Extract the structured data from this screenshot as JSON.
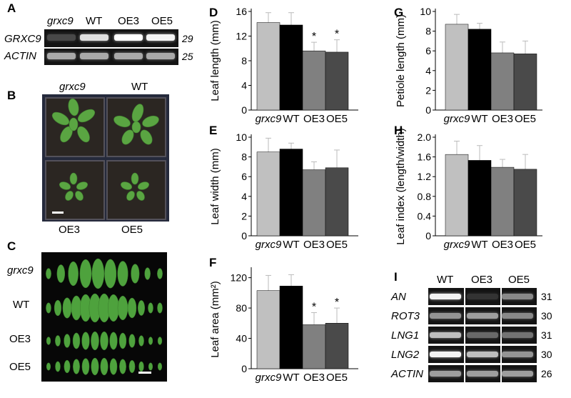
{
  "panel_letters": {
    "A": "A",
    "B": "B",
    "C": "C",
    "D": "D",
    "E": "E",
    "F": "F",
    "G": "G",
    "H": "H",
    "I": "I"
  },
  "panel_a": {
    "lanes": [
      "grxc9",
      "WT",
      "OE3",
      "OE5"
    ],
    "rows": [
      {
        "label": "GRXC9",
        "cycles": "29"
      },
      {
        "label": "ACTIN",
        "cycles": "25"
      }
    ],
    "band_intensity": {
      "GRXC9": [
        0.15,
        0.85,
        1.0,
        0.95
      ],
      "ACTIN": [
        0.6,
        0.6,
        0.6,
        0.6
      ]
    }
  },
  "panel_b": {
    "labels_top": [
      "grxc9",
      "WT"
    ],
    "labels_bottom": [
      "OE3",
      "OE5"
    ]
  },
  "panel_c": {
    "rows": [
      "grxc9",
      "WT",
      "OE3",
      "OE5"
    ]
  },
  "panel_i": {
    "lanes": [
      "WT",
      "OE3",
      "OE5"
    ],
    "rows": [
      {
        "label": "AN",
        "cycles": "31"
      },
      {
        "label": "ROT3",
        "cycles": "30"
      },
      {
        "label": "LNG1",
        "cycles": "31"
      },
      {
        "label": "LNG2",
        "cycles": "30"
      },
      {
        "label": "ACTIN",
        "cycles": "26"
      }
    ],
    "band_intensity": {
      "AN": [
        0.95,
        0.05,
        0.45
      ],
      "ROT3": [
        0.5,
        0.55,
        0.45
      ],
      "LNG1": [
        0.7,
        0.3,
        0.35
      ],
      "LNG2": [
        0.95,
        0.7,
        0.5
      ],
      "ACTIN": [
        0.55,
        0.55,
        0.55
      ]
    }
  },
  "colors": {
    "grxc9": "#c0c0c0",
    "WT": "#000000",
    "OE3": "#808080",
    "OE5": "#4a4a4a"
  },
  "chart_data": [
    {
      "panel": "D",
      "type": "bar",
      "categories": [
        "grxc9",
        "WT",
        "OE3",
        "OE5"
      ],
      "values": [
        14.2,
        13.8,
        9.6,
        9.4
      ],
      "errors": [
        1.6,
        2.0,
        1.4,
        2.0
      ],
      "significance": [
        "",
        "",
        "*",
        "*"
      ],
      "ylabel": "Leaf length (mm)",
      "ylim": [
        0,
        16
      ],
      "yticks": [
        0,
        4,
        8,
        12,
        16
      ],
      "ytick_labels": [
        "0",
        "4",
        "8",
        "12",
        "16"
      ]
    },
    {
      "panel": "E",
      "type": "bar",
      "categories": [
        "grxc9",
        "WT",
        "OE3",
        "OE5"
      ],
      "values": [
        8.5,
        8.8,
        6.7,
        6.9
      ],
      "errors": [
        1.4,
        0.6,
        0.8,
        1.8
      ],
      "significance": [
        "",
        "",
        "",
        ""
      ],
      "ylabel": "Leaf width (mm)",
      "ylim": [
        0,
        10
      ],
      "yticks": [
        0,
        2,
        4,
        6,
        8,
        10
      ],
      "ytick_labels": [
        "0",
        "2",
        "4",
        "6",
        "8",
        "10"
      ]
    },
    {
      "panel": "F",
      "type": "bar",
      "categories": [
        "grxc9",
        "WT",
        "OE3",
        "OE5"
      ],
      "values": [
        103,
        109,
        58,
        60
      ],
      "errors": [
        20,
        15,
        16,
        20
      ],
      "significance": [
        "",
        "",
        "*",
        "*"
      ],
      "ylabel": "Leaf area (mm²)",
      "ylim": [
        0,
        130
      ],
      "yticks": [
        0,
        40,
        80,
        120
      ],
      "ytick_labels": [
        "0",
        "40",
        "80",
        "120"
      ]
    },
    {
      "panel": "G",
      "type": "bar",
      "categories": [
        "grxc9",
        "WT",
        "OE3",
        "OE5"
      ],
      "values": [
        8.7,
        8.2,
        5.8,
        5.7
      ],
      "errors": [
        1.0,
        0.6,
        1.1,
        1.3
      ],
      "significance": [
        "",
        "",
        "",
        ""
      ],
      "ylabel": "Petiole length (mm)",
      "ylim": [
        0,
        10
      ],
      "yticks": [
        0,
        2,
        4,
        6,
        8,
        10
      ],
      "ytick_labels": [
        "0",
        "2",
        "4",
        "6",
        "8",
        "10"
      ]
    },
    {
      "panel": "H",
      "type": "bar",
      "categories": [
        "grxc9",
        "WT",
        "OE3",
        "OE5"
      ],
      "values": [
        1.65,
        1.53,
        1.39,
        1.35
      ],
      "errors": [
        0.27,
        0.3,
        0.16,
        0.3
      ],
      "significance": [
        "",
        "",
        "",
        ""
      ],
      "ylabel": "Leaf index (length/width)",
      "ylim": [
        0,
        2.0
      ],
      "yticks": [
        0,
        0.4,
        0.8,
        1.2,
        1.6,
        2.0
      ],
      "ytick_labels": [
        "0",
        "0.4",
        "0.8",
        "1.2",
        "1.6",
        "2.0"
      ]
    }
  ]
}
